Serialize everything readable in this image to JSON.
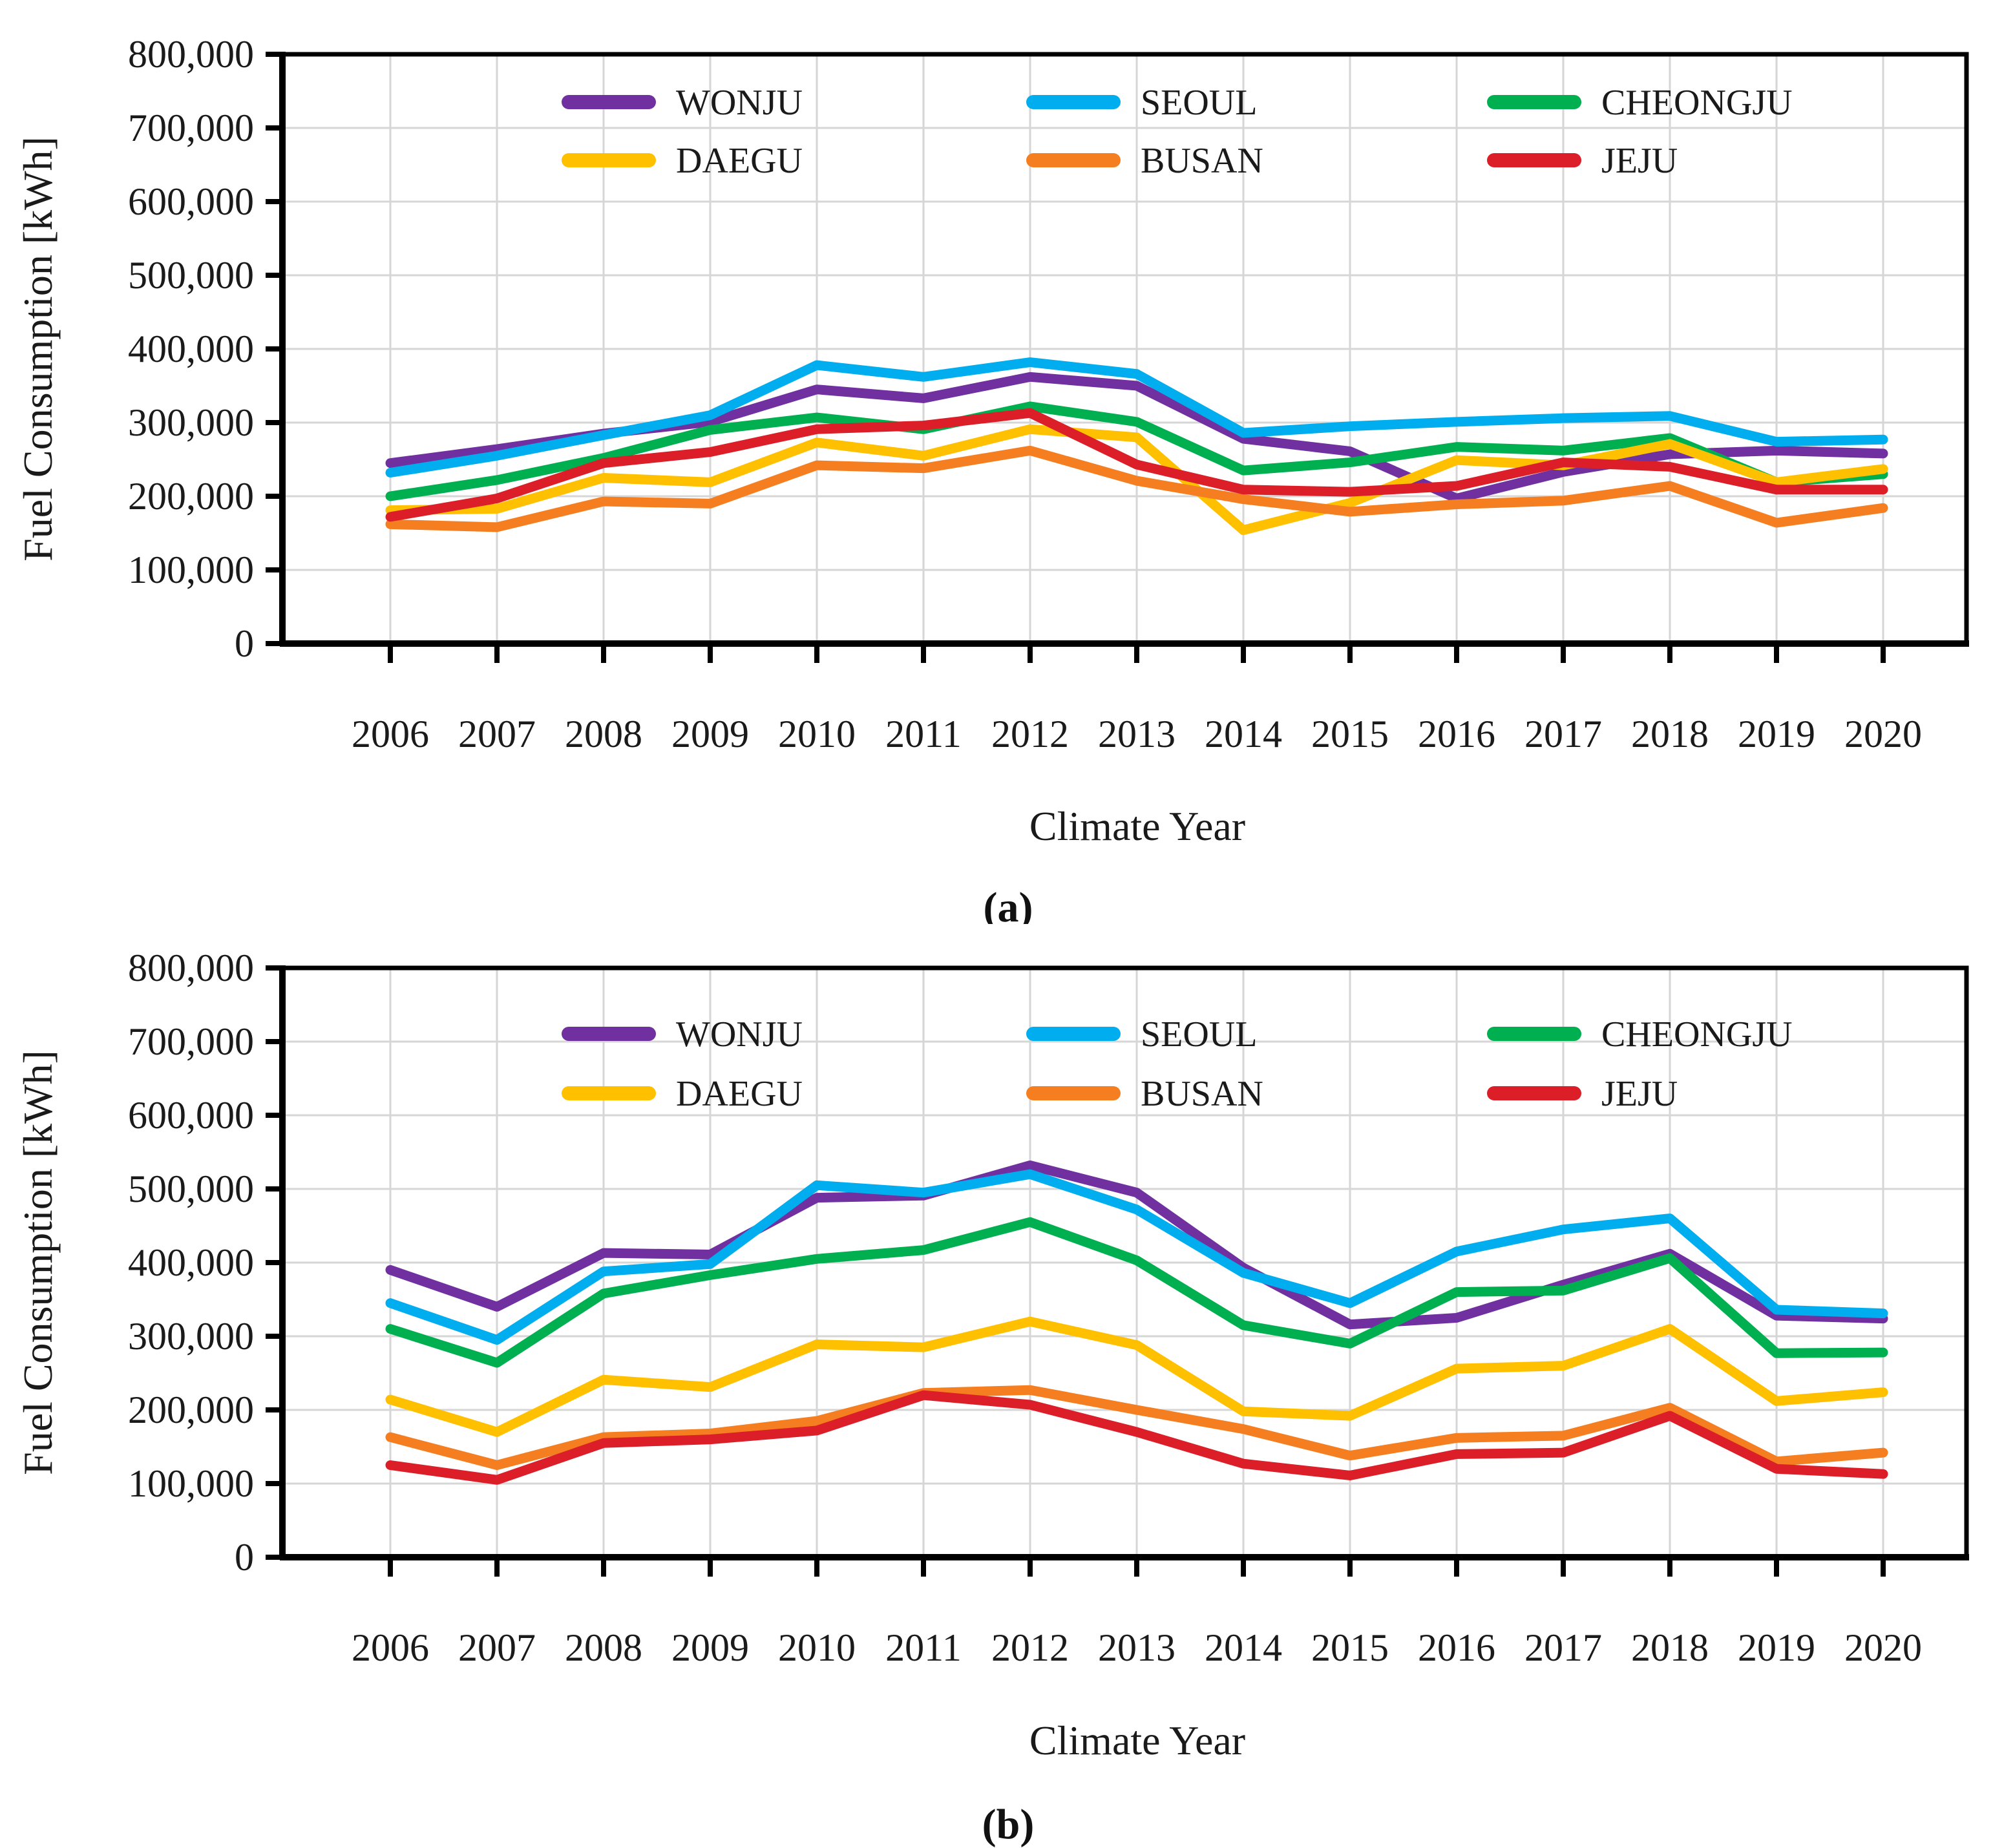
{
  "page": {
    "background": "#ffffff",
    "text_color": "#1a1a1a"
  },
  "chart_data": [
    {
      "type": "line",
      "panel": "a",
      "caption": "(a)",
      "title": "",
      "xlabel": "Climate Year",
      "ylabel": "Fuel Consumption [kWh]",
      "ylim": [
        0,
        800000
      ],
      "ytick_step": 100000,
      "grid": true,
      "legend_position": "top-inside",
      "categories": [
        2006,
        2007,
        2008,
        2009,
        2010,
        2011,
        2012,
        2013,
        2014,
        2015,
        2016,
        2017,
        2018,
        2019,
        2020
      ],
      "series": [
        {
          "name": "WONJU",
          "color": "#7030A0",
          "values": [
            245000,
            264000,
            285000,
            301000,
            345000,
            333000,
            362000,
            350000,
            278000,
            261000,
            197000,
            233000,
            257000,
            262000,
            258000
          ]
        },
        {
          "name": "SEOUL",
          "color": "#00AEEF",
          "values": [
            232000,
            255000,
            283000,
            310000,
            378000,
            362000,
            382000,
            366000,
            286000,
            295000,
            301000,
            306000,
            309000,
            274000,
            277000
          ]
        },
        {
          "name": "CHEONGJU",
          "color": "#00B050",
          "values": [
            200000,
            222000,
            252000,
            290000,
            307000,
            291000,
            322000,
            301000,
            235000,
            246000,
            267000,
            262000,
            279000,
            219000,
            230000
          ]
        },
        {
          "name": "DAEGU",
          "color": "#FFC000",
          "values": [
            181000,
            183000,
            225000,
            219000,
            273000,
            255000,
            291000,
            280000,
            154000,
            191000,
            249000,
            242000,
            271000,
            219000,
            237000
          ]
        },
        {
          "name": "BUSAN",
          "color": "#F57E20",
          "values": [
            162000,
            158000,
            193000,
            190000,
            242000,
            238000,
            262000,
            221000,
            196000,
            179000,
            189000,
            194000,
            214000,
            164000,
            184000
          ]
        },
        {
          "name": "JEJU",
          "color": "#DC1E28",
          "values": [
            172000,
            197000,
            245000,
            260000,
            291000,
            296000,
            313000,
            243000,
            209000,
            206000,
            214000,
            246000,
            240000,
            209000,
            209000
          ]
        }
      ]
    },
    {
      "type": "line",
      "panel": "b",
      "caption": "(b)",
      "title": "",
      "xlabel": "Climate Year",
      "ylabel": "Fuel Consumption [kWh]",
      "ylim": [
        0,
        800000
      ],
      "ytick_step": 100000,
      "grid": true,
      "legend_position": "top-inside",
      "categories": [
        2006,
        2007,
        2008,
        2009,
        2010,
        2011,
        2012,
        2013,
        2014,
        2015,
        2016,
        2017,
        2018,
        2019,
        2020
      ],
      "series": [
        {
          "name": "WONJU",
          "color": "#7030A0",
          "values": [
            390000,
            340000,
            413000,
            411000,
            488000,
            491000,
            532000,
            495000,
            393000,
            316000,
            325000,
            370000,
            412000,
            328000,
            324000
          ]
        },
        {
          "name": "SEOUL",
          "color": "#00AEEF",
          "values": [
            345000,
            295000,
            388000,
            398000,
            505000,
            495000,
            520000,
            472000,
            386000,
            345000,
            415000,
            445000,
            460000,
            336000,
            331000
          ]
        },
        {
          "name": "CHEONGJU",
          "color": "#00B050",
          "values": [
            310000,
            264000,
            358000,
            383000,
            405000,
            417000,
            455000,
            403000,
            315000,
            290000,
            360000,
            362000,
            406000,
            277000,
            278000
          ]
        },
        {
          "name": "DAEGU",
          "color": "#FFC000",
          "values": [
            214000,
            170000,
            241000,
            231000,
            289000,
            285000,
            320000,
            288000,
            198000,
            192000,
            256000,
            260000,
            310000,
            212000,
            224000
          ]
        },
        {
          "name": "BUSAN",
          "color": "#F57E20",
          "values": [
            163000,
            125000,
            163000,
            168000,
            185000,
            223000,
            227000,
            200000,
            174000,
            138000,
            162000,
            165000,
            203000,
            130000,
            142000
          ]
        },
        {
          "name": "JEJU",
          "color": "#DC1E28",
          "values": [
            125000,
            105000,
            155000,
            160000,
            172000,
            220000,
            207000,
            170000,
            127000,
            111000,
            140000,
            142000,
            192000,
            120000,
            113000
          ]
        }
      ]
    }
  ]
}
